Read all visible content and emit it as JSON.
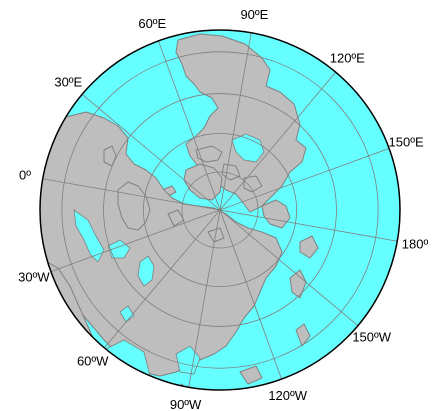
{
  "map": {
    "projection": "north-polar-stereographic",
    "colors": {
      "ocean": "#66ffff",
      "land": "#bebebe",
      "coast": "#808080",
      "graticule": "#7f7f7f",
      "frame": "#000000"
    },
    "graticule": {
      "meridian_step_deg": 30,
      "parallels_deg": [
        80,
        70,
        60,
        50
      ]
    },
    "longitude_labels": [
      {
        "lon": -60,
        "text": "60ºW"
      },
      {
        "lon": -90,
        "text": "90ºW"
      },
      {
        "lon": -30,
        "text": "30ºW"
      },
      {
        "lon": -120,
        "text": "120ºW"
      },
      {
        "lon": 0,
        "text": "0º"
      },
      {
        "lon": -150,
        "text": "150ºW"
      },
      {
        "lon": 30,
        "text": "30ºE"
      },
      {
        "lon": 180,
        "text": "180º"
      },
      {
        "lon": 60,
        "text": "60ºE"
      },
      {
        "lon": 150,
        "text": "150ºE"
      },
      {
        "lon": 90,
        "text": "90ºE"
      },
      {
        "lon": 120,
        "text": "120ºE"
      }
    ]
  }
}
